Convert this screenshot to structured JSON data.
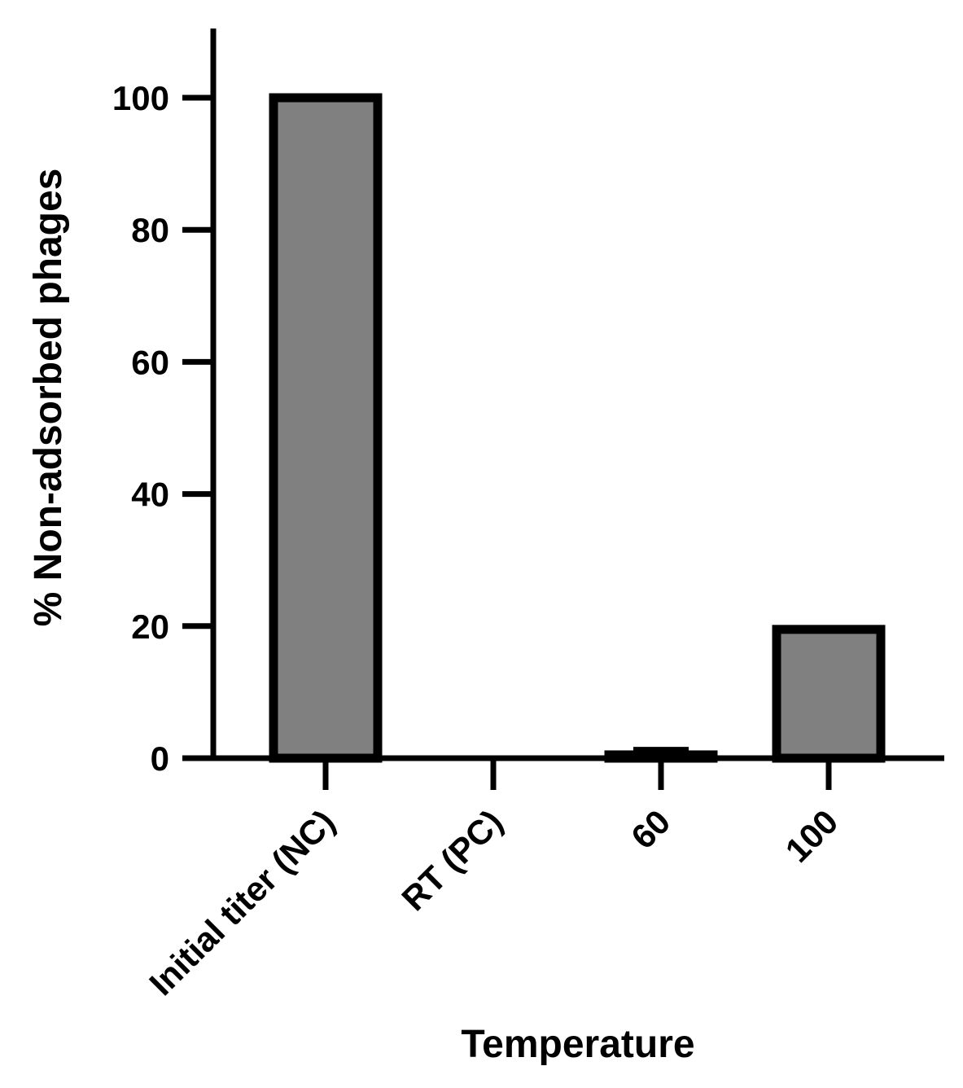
{
  "chart_data": {
    "type": "bar",
    "categories": [
      "Initial titer (NC)",
      "RT (PC)",
      "60",
      "100"
    ],
    "values": [
      100,
      0,
      0.5,
      19.5
    ],
    "error": [
      null,
      null,
      0.9,
      null
    ],
    "title": "",
    "xlabel": "Temperature",
    "ylabel": "% Non-adsorbed phages",
    "ylim": [
      0,
      110
    ],
    "yticks": [
      0,
      20,
      40,
      60,
      80,
      100
    ],
    "grid": false,
    "legend": "none",
    "bar_color": "#808080",
    "edge_color": "#000000"
  }
}
